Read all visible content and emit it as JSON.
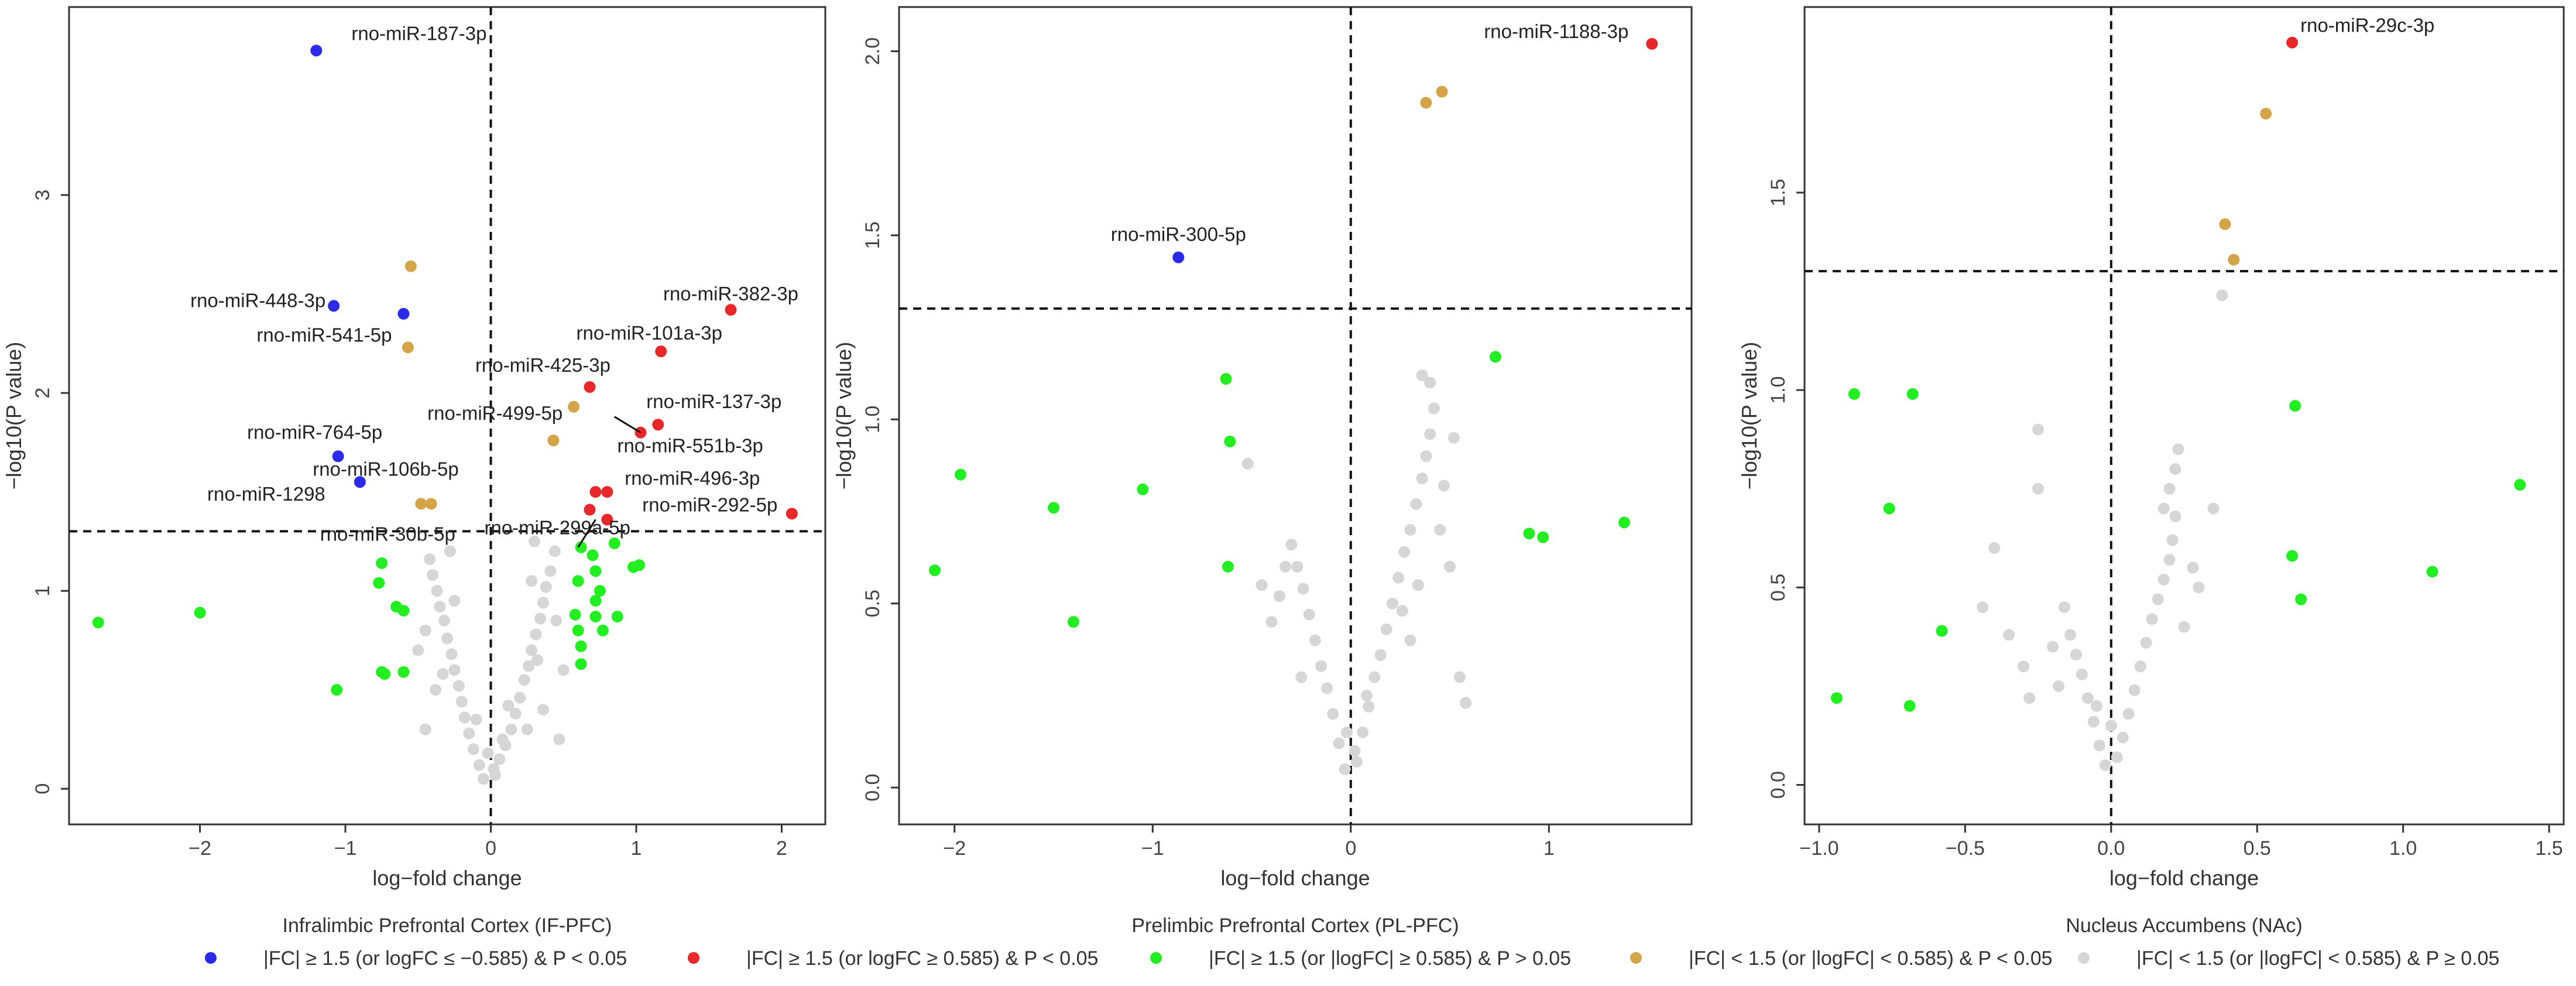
{
  "colors": {
    "up_sig": "#e8272b",
    "down_sig": "#2a2ae8",
    "fc_nonsig": "#22ee22",
    "small_fc_sig": "#d3a548",
    "nonsig": "#d6d6d6"
  },
  "legend": [
    {
      "key": "down_sig",
      "label": "|FC| ≥ 1.5 (or logFC ≤ −0.585) & P < 0.05"
    },
    {
      "key": "up_sig",
      "label": "|FC| ≥ 1.5 (or logFC ≥ 0.585) & P < 0.05"
    },
    {
      "key": "fc_nonsig",
      "label": "|FC| ≥ 1.5 (or |logFC| ≥ 0.585) & P > 0.05"
    },
    {
      "key": "small_fc_sig",
      "label": "|FC| < 1.5 (or |logFC| < 0.585) & P < 0.05"
    },
    {
      "key": "nonsig",
      "label": "|FC| < 1.5 (or |logFC| < 0.585) & P ≥ 0.05"
    }
  ],
  "chart_data": [
    {
      "type": "scatter",
      "title": "Infralimbic Prefrontal Cortex (IF-PFC)",
      "xlabel": "log−fold change",
      "ylabel": "−log10(P value)",
      "xlim": [
        -2.9,
        2.3
      ],
      "ylim": [
        -0.18,
        3.95
      ],
      "xticks": [
        -2,
        -1,
        0,
        1,
        2
      ],
      "yticks": [
        0,
        1,
        2,
        3
      ],
      "hline": 1.301,
      "vline": 0,
      "points": {
        "down_sig": [
          [
            -1.2,
            3.73
          ],
          [
            -1.08,
            2.44
          ],
          [
            -0.6,
            2.4
          ],
          [
            -1.05,
            1.68
          ],
          [
            -0.9,
            1.55
          ]
        ],
        "up_sig": [
          [
            1.65,
            2.42
          ],
          [
            1.17,
            2.21
          ],
          [
            0.68,
            2.03
          ],
          [
            1.15,
            1.84
          ],
          [
            1.03,
            1.8
          ],
          [
            0.72,
            1.5
          ],
          [
            0.8,
            1.5
          ],
          [
            0.68,
            1.41
          ],
          [
            0.8,
            1.36
          ],
          [
            2.07,
            1.39
          ]
        ],
        "small_fc_sig": [
          [
            -0.55,
            2.64
          ],
          [
            -0.57,
            2.23
          ],
          [
            -0.48,
            1.44
          ],
          [
            -0.41,
            1.44
          ],
          [
            0.57,
            1.93
          ],
          [
            0.43,
            1.76
          ]
        ],
        "fc_nonsig": [
          [
            -2.7,
            0.84
          ],
          [
            -2.0,
            0.89
          ],
          [
            -0.75,
            1.14
          ],
          [
            -0.77,
            1.04
          ],
          [
            -0.65,
            0.92
          ],
          [
            -0.6,
            0.9
          ],
          [
            -0.75,
            0.59
          ],
          [
            -0.73,
            0.58
          ],
          [
            -0.6,
            0.59
          ],
          [
            -1.06,
            0.5
          ],
          [
            0.62,
            1.22
          ],
          [
            0.7,
            1.18
          ],
          [
            0.85,
            1.24
          ],
          [
            0.98,
            1.12
          ],
          [
            1.02,
            1.13
          ],
          [
            0.6,
            1.05
          ],
          [
            0.72,
            1.1
          ],
          [
            0.75,
            1.0
          ],
          [
            0.72,
            0.95
          ],
          [
            0.58,
            0.88
          ],
          [
            0.6,
            0.8
          ],
          [
            0.72,
            0.87
          ],
          [
            0.87,
            0.87
          ],
          [
            0.77,
            0.8
          ],
          [
            0.62,
            0.72
          ],
          [
            0.62,
            0.63
          ]
        ],
        "nonsig": [
          [
            -0.05,
            0.05
          ],
          [
            0.03,
            0.07
          ],
          [
            -0.08,
            0.12
          ],
          [
            0.06,
            0.15
          ],
          [
            -0.12,
            0.2
          ],
          [
            0.1,
            0.22
          ],
          [
            -0.15,
            0.28
          ],
          [
            0.14,
            0.3
          ],
          [
            -0.18,
            0.36
          ],
          [
            0.17,
            0.38
          ],
          [
            -0.2,
            0.44
          ],
          [
            0.2,
            0.46
          ],
          [
            -0.22,
            0.52
          ],
          [
            0.23,
            0.55
          ],
          [
            -0.25,
            0.6
          ],
          [
            0.26,
            0.62
          ],
          [
            -0.27,
            0.68
          ],
          [
            0.28,
            0.7
          ],
          [
            -0.3,
            0.76
          ],
          [
            0.31,
            0.78
          ],
          [
            -0.32,
            0.85
          ],
          [
            0.34,
            0.86
          ],
          [
            -0.35,
            0.92
          ],
          [
            0.36,
            0.94
          ],
          [
            -0.37,
            1.0
          ],
          [
            0.38,
            1.02
          ],
          [
            -0.4,
            1.08
          ],
          [
            0.41,
            1.1
          ],
          [
            -0.42,
            1.16
          ],
          [
            0.44,
            1.2
          ],
          [
            -0.38,
            0.5
          ],
          [
            0.36,
            0.4
          ],
          [
            -0.45,
            0.3
          ],
          [
            0.47,
            0.25
          ],
          [
            -0.1,
            0.35
          ],
          [
            0.12,
            0.42
          ],
          [
            -0.25,
            0.95
          ],
          [
            0.28,
            1.05
          ],
          [
            0.5,
            0.6
          ],
          [
            -0.5,
            0.7
          ],
          [
            0.02,
            0.1
          ],
          [
            -0.02,
            0.18
          ],
          [
            0.08,
            0.25
          ],
          [
            -0.33,
            0.58
          ],
          [
            0.32,
            0.65
          ],
          [
            -0.28,
            1.2
          ],
          [
            0.3,
            1.25
          ],
          [
            0.45,
            0.85
          ],
          [
            -0.45,
            0.8
          ],
          [
            0.25,
            0.3
          ]
        ]
      },
      "annotations": [
        {
          "text": "rno-miR-187-3p",
          "x": -1.2,
          "y": 3.73
        },
        {
          "text": "rno-miR-448-3p",
          "x": -1.08,
          "y": 2.44
        },
        {
          "text": "rno-miR-541-5p",
          "x": -0.6,
          "y": 2.23
        },
        {
          "text": "rno-miR-764-5p",
          "x": -1.05,
          "y": 1.68
        },
        {
          "text": "rno-miR-1298",
          "x": -0.9,
          "y": 1.55
        },
        {
          "text": "rno-miR-106b-5p",
          "x": -0.5,
          "y": 1.44
        },
        {
          "text": "rno-miR-30b-5p",
          "x": -0.45,
          "y": 1.36
        },
        {
          "text": "rno-miR-382-3p",
          "x": 1.65,
          "y": 2.42
        },
        {
          "text": "rno-miR-101a-3p",
          "x": 1.17,
          "y": 2.21
        },
        {
          "text": "rno-miR-425-3p",
          "x": 0.68,
          "y": 2.03
        },
        {
          "text": "rno-miR-499-5p",
          "x": 0.57,
          "y": 1.93
        },
        {
          "text": "rno-miR-137-3p",
          "x": 1.15,
          "y": 1.84
        },
        {
          "text": "rno-miR-551b-3p",
          "x": 1.03,
          "y": 1.8
        },
        {
          "text": "rno-miR-496-3p",
          "x": 0.8,
          "y": 1.5
        },
        {
          "text": "rno-miR-292-5p",
          "x": 0.8,
          "y": 1.36
        },
        {
          "text": "rno-miR-299a-5p",
          "x": 0.68,
          "y": 1.41
        }
      ]
    },
    {
      "type": "scatter",
      "title": "Prelimbic Prefrontal Cortex (PL-PFC)",
      "xlabel": "log−fold change",
      "ylabel": "−log10(P value)",
      "xlim": [
        -2.28,
        1.72
      ],
      "ylim": [
        -0.1,
        2.12
      ],
      "xticks": [
        -2,
        -1,
        0,
        1
      ],
      "yticks": [
        0.0,
        0.5,
        1.0,
        1.5,
        2.0
      ],
      "hline": 1.301,
      "vline": 0,
      "points": {
        "down_sig": [
          [
            -0.87,
            1.44
          ]
        ],
        "up_sig": [
          [
            1.52,
            2.02
          ]
        ],
        "small_fc_sig": [
          [
            0.38,
            1.86
          ],
          [
            0.46,
            1.89
          ]
        ],
        "fc_nonsig": [
          [
            -2.1,
            0.59
          ],
          [
            -1.97,
            0.85
          ],
          [
            -1.5,
            0.76
          ],
          [
            -1.4,
            0.45
          ],
          [
            -1.05,
            0.81
          ],
          [
            -0.63,
            1.11
          ],
          [
            -0.61,
            0.94
          ],
          [
            -0.62,
            0.6
          ],
          [
            0.73,
            1.17
          ],
          [
            0.9,
            0.69
          ],
          [
            0.97,
            0.68
          ],
          [
            1.38,
            0.72
          ]
        ],
        "nonsig": [
          [
            -0.03,
            0.05
          ],
          [
            0.03,
            0.07
          ],
          [
            -0.06,
            0.12
          ],
          [
            0.06,
            0.15
          ],
          [
            -0.09,
            0.2
          ],
          [
            0.09,
            0.22
          ],
          [
            -0.12,
            0.27
          ],
          [
            0.12,
            0.3
          ],
          [
            -0.15,
            0.33
          ],
          [
            0.15,
            0.36
          ],
          [
            -0.18,
            0.4
          ],
          [
            0.18,
            0.43
          ],
          [
            -0.21,
            0.47
          ],
          [
            0.21,
            0.5
          ],
          [
            -0.24,
            0.54
          ],
          [
            0.24,
            0.57
          ],
          [
            -0.27,
            0.6
          ],
          [
            0.27,
            0.64
          ],
          [
            -0.3,
            0.66
          ],
          [
            0.3,
            0.7
          ],
          [
            0.33,
            0.77
          ],
          [
            0.36,
            0.84
          ],
          [
            0.38,
            0.9
          ],
          [
            0.4,
            0.96
          ],
          [
            0.42,
            1.03
          ],
          [
            0.4,
            1.1
          ],
          [
            0.36,
            1.12
          ],
          [
            -0.52,
            0.88
          ],
          [
            -0.45,
            0.55
          ],
          [
            -0.4,
            0.45
          ],
          [
            0.5,
            0.6
          ],
          [
            0.55,
            0.3
          ],
          [
            0.58,
            0.23
          ],
          [
            -0.33,
            0.6
          ],
          [
            0.45,
            0.7
          ],
          [
            0.02,
            0.1
          ],
          [
            -0.02,
            0.15
          ],
          [
            0.08,
            0.25
          ],
          [
            -0.25,
            0.3
          ],
          [
            0.3,
            0.4
          ],
          [
            0.47,
            0.82
          ],
          [
            0.52,
            0.95
          ],
          [
            -0.36,
            0.52
          ],
          [
            0.26,
            0.48
          ],
          [
            0.34,
            0.55
          ]
        ]
      },
      "annotations": [
        {
          "text": "rno-miR-1188-3p",
          "x": 1.52,
          "y": 2.02
        },
        {
          "text": "rno-miR-300-5p",
          "x": -0.87,
          "y": 1.44
        }
      ]
    },
    {
      "type": "scatter",
      "title": "Nucleus Accumbens (NAc)",
      "xlabel": "log−fold change",
      "ylabel": "−log10(P value)",
      "xlim": [
        -1.05,
        1.55
      ],
      "ylim": [
        -0.1,
        1.97
      ],
      "xticks": [
        -1.0,
        -0.5,
        0.0,
        0.5,
        1.0,
        1.5
      ],
      "yticks": [
        0.0,
        0.5,
        1.0,
        1.5
      ],
      "hline": 1.301,
      "vline": 0,
      "points": {
        "down_sig": [],
        "up_sig": [
          [
            0.62,
            1.88
          ]
        ],
        "small_fc_sig": [
          [
            0.53,
            1.7
          ],
          [
            0.39,
            1.42
          ],
          [
            0.42,
            1.33
          ]
        ],
        "fc_nonsig": [
          [
            -0.88,
            0.99
          ],
          [
            -0.68,
            0.99
          ],
          [
            -0.76,
            0.7
          ],
          [
            -0.58,
            0.39
          ],
          [
            -0.94,
            0.22
          ],
          [
            -0.69,
            0.2
          ],
          [
            0.63,
            0.96
          ],
          [
            0.62,
            0.58
          ],
          [
            0.65,
            0.47
          ],
          [
            1.1,
            0.54
          ],
          [
            1.4,
            0.76
          ]
        ],
        "nonsig": [
          [
            -0.02,
            0.05
          ],
          [
            0.02,
            0.07
          ],
          [
            -0.04,
            0.1
          ],
          [
            0.04,
            0.12
          ],
          [
            -0.06,
            0.16
          ],
          [
            0.06,
            0.18
          ],
          [
            -0.08,
            0.22
          ],
          [
            0.08,
            0.24
          ],
          [
            -0.1,
            0.28
          ],
          [
            0.1,
            0.3
          ],
          [
            -0.12,
            0.33
          ],
          [
            0.12,
            0.36
          ],
          [
            -0.14,
            0.38
          ],
          [
            0.14,
            0.42
          ],
          [
            0.16,
            0.47
          ],
          [
            0.18,
            0.52
          ],
          [
            0.2,
            0.57
          ],
          [
            0.21,
            0.62
          ],
          [
            0.22,
            0.68
          ],
          [
            0.18,
            0.7
          ],
          [
            0.2,
            0.75
          ],
          [
            0.22,
            0.8
          ],
          [
            0.23,
            0.85
          ],
          [
            -0.16,
            0.45
          ],
          [
            -0.2,
            0.35
          ],
          [
            -0.3,
            0.3
          ],
          [
            -0.35,
            0.38
          ],
          [
            -0.25,
            0.75
          ],
          [
            -0.25,
            0.9
          ],
          [
            -0.4,
            0.6
          ],
          [
            -0.44,
            0.45
          ],
          [
            0.3,
            0.5
          ],
          [
            0.35,
            0.7
          ],
          [
            0.38,
            1.24
          ],
          [
            0.28,
            0.55
          ],
          [
            -0.05,
            0.2
          ],
          [
            0.0,
            0.15
          ],
          [
            -0.28,
            0.22
          ],
          [
            -0.18,
            0.25
          ],
          [
            0.25,
            0.4
          ]
        ]
      },
      "annotations": [
        {
          "text": "rno-miR-29c-3p",
          "x": 0.62,
          "y": 1.88
        }
      ]
    }
  ]
}
